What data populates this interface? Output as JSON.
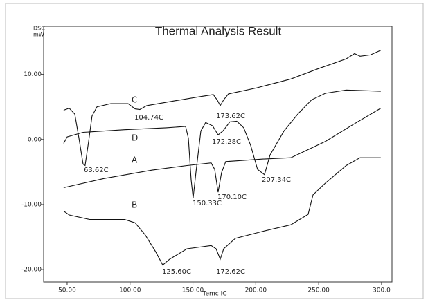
{
  "chart_data": {
    "type": "line",
    "title": "Thermal Analysis Result",
    "ylabel": [
      "DSC",
      "mW"
    ],
    "xlabel": "Temc IC",
    "xlim": [
      31.3,
      308.3
    ],
    "ylim": [
      -21.9,
      17.4
    ],
    "xticks": [
      {
        "value": 50,
        "label": "50.00"
      },
      {
        "value": 100,
        "label": "100.00"
      },
      {
        "value": 150,
        "label": "150.00"
      },
      {
        "value": 200,
        "label": "200.00"
      },
      {
        "value": 250,
        "label": "250.00"
      },
      {
        "value": 300,
        "label": "300.0"
      }
    ],
    "yticks": [
      {
        "value": 10,
        "label": "10.00"
      },
      {
        "value": 0,
        "label": "0.00"
      },
      {
        "value": -10,
        "label": "-10.00"
      },
      {
        "value": -20,
        "label": "-20.00"
      }
    ],
    "grid": false,
    "series": [
      {
        "name": "C",
        "color": "#111111",
        "x": [
          47.2,
          51.7,
          56.1,
          59.4,
          62.7,
          64.3,
          67.1,
          69.8,
          73.7,
          84.7,
          98.5,
          104.0,
          107.8,
          113.3,
          134.3,
          156.3,
          166.2,
          169.5,
          171.7,
          174.5,
          178.3,
          200.3,
          227.9,
          249.9,
          271.9,
          278.5,
          282.9,
          291.2,
          299.4
        ],
        "values": [
          4.5,
          4.8,
          3.9,
          0.2,
          -3.8,
          -4.0,
          -0.3,
          3.6,
          5.0,
          5.5,
          5.5,
          4.7,
          4.6,
          5.2,
          5.9,
          6.6,
          6.9,
          6.0,
          5.2,
          6.1,
          7.0,
          7.9,
          9.3,
          10.9,
          12.4,
          13.2,
          12.8,
          13.0,
          13.7
        ]
      },
      {
        "name": "D",
        "color": "#111111",
        "x": [
          47.2,
          50.0,
          62.7,
          95.7,
          128.7,
          144.2,
          146.4,
          148.6,
          150.2,
          152.4,
          156.3,
          160.1,
          165.6,
          170.0,
          173.9,
          179.4,
          184.9,
          190.4,
          195.9,
          201.4,
          206.9,
          211.3,
          222.4,
          233.4,
          244.4,
          255.4,
          271.9,
          299.4
        ],
        "values": [
          -0.6,
          0.4,
          1.1,
          1.5,
          1.8,
          2.0,
          0.2,
          -6.2,
          -9.0,
          -5.1,
          1.3,
          2.6,
          2.1,
          0.7,
          1.3,
          2.7,
          2.8,
          1.8,
          -0.9,
          -4.6,
          -5.4,
          -2.4,
          1.3,
          3.9,
          6.1,
          7.1,
          7.6,
          7.4
        ]
      },
      {
        "name": "A",
        "color": "#111111",
        "x": [
          47.2,
          79.2,
          117.7,
          145.3,
          164.5,
          167.3,
          170.0,
          172.8,
          176.1,
          205.8,
          227.9,
          255.4,
          277.4,
          299.4
        ],
        "values": [
          -7.4,
          -6.0,
          -4.7,
          -4.0,
          -3.6,
          -4.6,
          -8.1,
          -5.1,
          -3.4,
          -3.0,
          -2.8,
          -0.3,
          2.3,
          4.8
        ]
      },
      {
        "name": "B",
        "color": "#111111",
        "x": [
          47.2,
          51.7,
          68.2,
          95.7,
          104.0,
          112.2,
          120.5,
          126.0,
          131.5,
          145.3,
          164.5,
          168.4,
          171.7,
          174.5,
          183.8,
          205.8,
          227.9,
          241.6,
          245.5,
          255.4,
          271.9,
          282.9,
          299.4
        ],
        "values": [
          -11.0,
          -11.6,
          -12.3,
          -12.3,
          -12.8,
          -14.7,
          -17.3,
          -19.3,
          -18.4,
          -16.8,
          -16.3,
          -16.8,
          -18.4,
          -16.8,
          -15.2,
          -14.1,
          -13.1,
          -11.5,
          -8.5,
          -6.7,
          -4.0,
          -2.8,
          -2.8
        ]
      }
    ],
    "annotations": [
      "63.62C",
      "104.74C",
      "173.62C",
      "172.28C",
      "207.34C",
      "150.33C",
      "170.10C",
      "125.60C",
      "172.62C"
    ]
  }
}
